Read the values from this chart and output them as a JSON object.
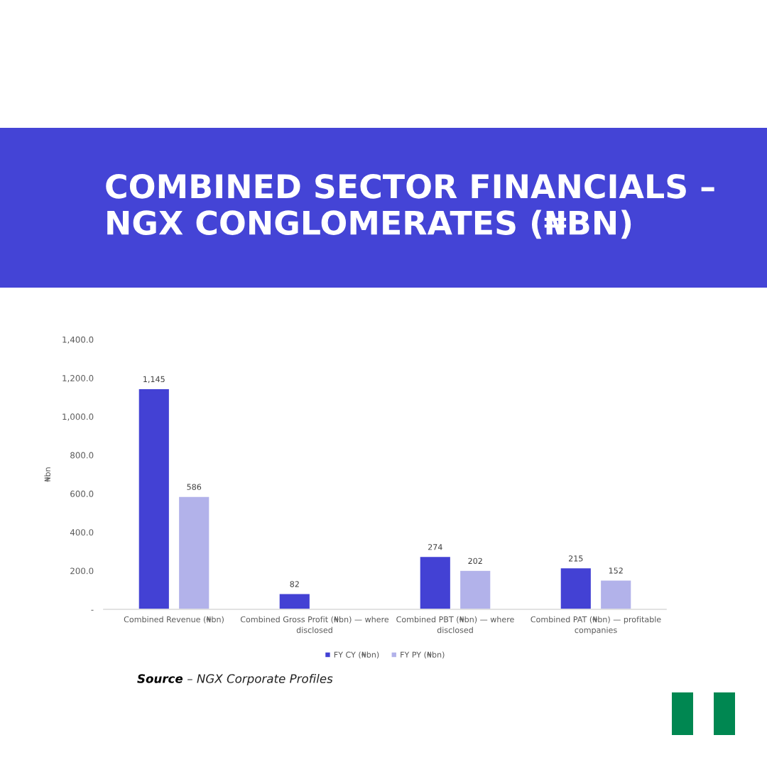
{
  "chart_data": {
    "type": "bar",
    "title": "COMBINED SECTOR FINANCIALS – NGX CONGLOMERATES (₦BN)",
    "ylabel": "₦bn",
    "categories": [
      "Combined Revenue (₦bn)",
      "Combined Gross Profit (₦bn) — where\ndisclosed",
      "Combined PBT (₦bn) — where\ndisclosed",
      "Combined PAT (₦bn) — profitable\ncompanies"
    ],
    "series": [
      {
        "name": "FY CY (₦bn)",
        "color": "#4341d4",
        "values": [
          1145,
          82,
          274,
          215
        ],
        "value_labels": [
          "1,145",
          "82",
          "274",
          "215"
        ]
      },
      {
        "name": "FY PY (₦bn)",
        "color": "#b2b2ea",
        "values": [
          586,
          null,
          202,
          152
        ],
        "value_labels": [
          "586",
          null,
          "202",
          "152"
        ]
      }
    ],
    "ylim": [
      0,
      1400
    ],
    "yticks": [
      {
        "value": 0,
        "label": "-"
      },
      {
        "value": 200,
        "label": "200.0"
      },
      {
        "value": 400,
        "label": "400.0"
      },
      {
        "value": 600,
        "label": "600.0"
      },
      {
        "value": 800,
        "label": "800.0"
      },
      {
        "value": 1000,
        "label": "1,000.0"
      },
      {
        "value": 1200,
        "label": "1,200.0"
      },
      {
        "value": 1400,
        "label": "1,400.0"
      }
    ],
    "legend": "bottom",
    "annotations": [
      "Source",
      "– NGX Corporate Profiles"
    ]
  }
}
